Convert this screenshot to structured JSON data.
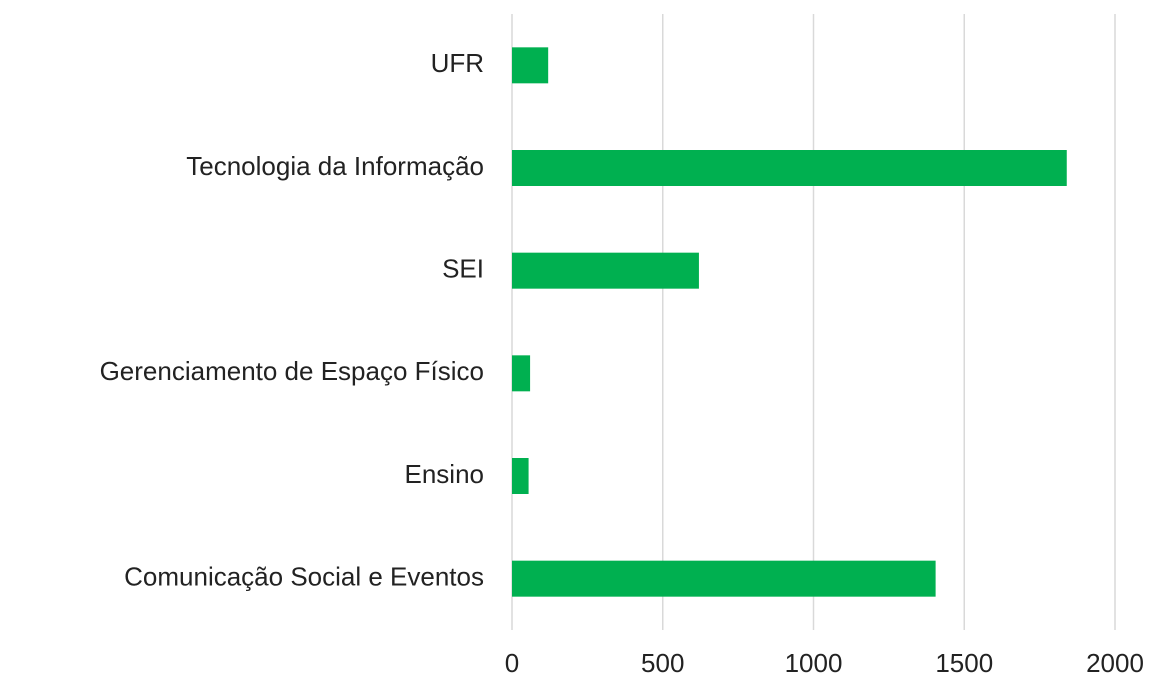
{
  "chart_data": {
    "type": "barh",
    "categories": [
      "UFR",
      "Tecnologia da Informação",
      "SEI",
      "Gerenciamento de Espaço Físico",
      "Ensino",
      "Comunicação Social e Eventos"
    ],
    "values": [
      120,
      1840,
      620,
      60,
      55,
      1405
    ],
    "color": "#00b050",
    "xlim": [
      0,
      2000
    ],
    "xticks": [
      0,
      500,
      1000,
      1500,
      2000
    ],
    "grid": true
  }
}
